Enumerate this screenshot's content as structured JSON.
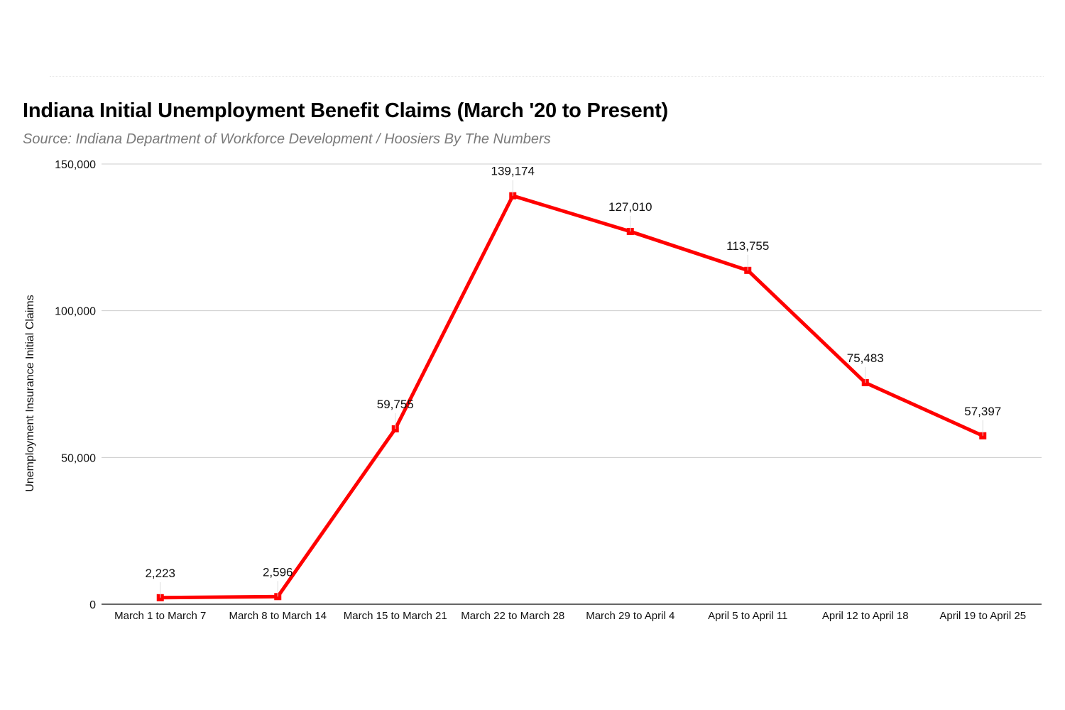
{
  "chart_data": {
    "type": "line",
    "title": "Indiana Initial Unemployment Benefit Claims (March '20 to Present)",
    "subtitle": "Source: Indiana Department of Workforce Development / Hoosiers By The Numbers",
    "xlabel": "",
    "ylabel": "Unemployment Insurance Initial Claims",
    "ylim": [
      0,
      150000
    ],
    "yticks": [
      0,
      50000,
      100000,
      150000
    ],
    "ytick_labels": [
      "0",
      "50,000",
      "100,000",
      "150,000"
    ],
    "grid": true,
    "legend": "none",
    "categories": [
      "March 1 to March 7",
      "March 8 to March 14",
      "March 15 to March 21",
      "March 22 to March 28",
      "March 29 to April 4",
      "April 5 to April 11",
      "April 12 to April 18",
      "April 19 to April 25"
    ],
    "series": [
      {
        "values": [
          2223,
          2596,
          59755,
          139174,
          127010,
          113755,
          75483,
          57397
        ],
        "labels": [
          "2,223",
          "2,596",
          "59,755",
          "139,174",
          "127,010",
          "113,755",
          "75,483",
          "57,397"
        ],
        "color": "#ff0000"
      }
    ]
  }
}
